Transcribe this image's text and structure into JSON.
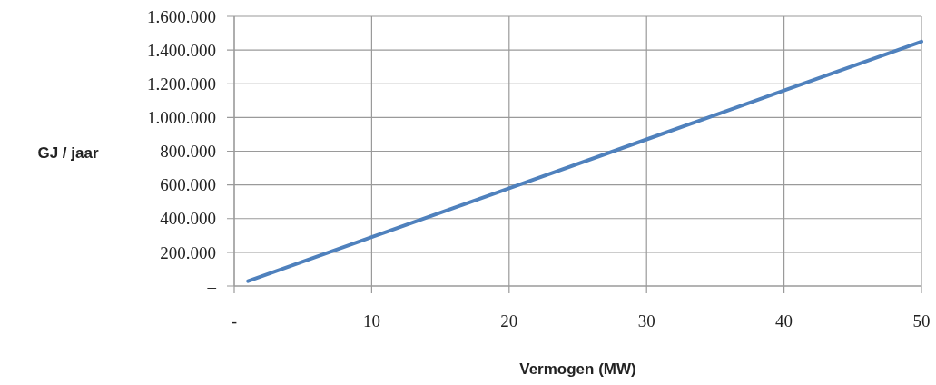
{
  "chart_data": {
    "type": "line",
    "xlabel": "Vermogen (MW)",
    "ylabel": "GJ / jaar",
    "series": [
      {
        "color": "#4f81bd",
        "x": [
          1,
          10,
          20,
          30,
          40,
          50
        ],
        "values": [
          29000,
          290000,
          580000,
          870000,
          1160000,
          1450000
        ]
      }
    ],
    "xlim": [
      0,
      50
    ],
    "xticks": [
      {
        "value": 0,
        "label": "-"
      },
      10,
      20,
      30,
      40,
      50
    ],
    "ylim": [
      0,
      1600000
    ],
    "yticks": [
      {
        "value": 0,
        "label": "–"
      },
      {
        "value": 200000,
        "label": "200.000"
      },
      {
        "value": 400000,
        "label": "400.000"
      },
      {
        "value": 600000,
        "label": "600.000"
      },
      {
        "value": 800000,
        "label": "800.000"
      },
      {
        "value": 1000000,
        "label": "1.000.000"
      },
      {
        "value": 1200000,
        "label": "1.200.000"
      },
      {
        "value": 1400000,
        "label": "1.400.000"
      },
      {
        "value": 1600000,
        "label": "1.600.000"
      }
    ],
    "grid": true,
    "marker": "none",
    "line_style": "solid"
  }
}
